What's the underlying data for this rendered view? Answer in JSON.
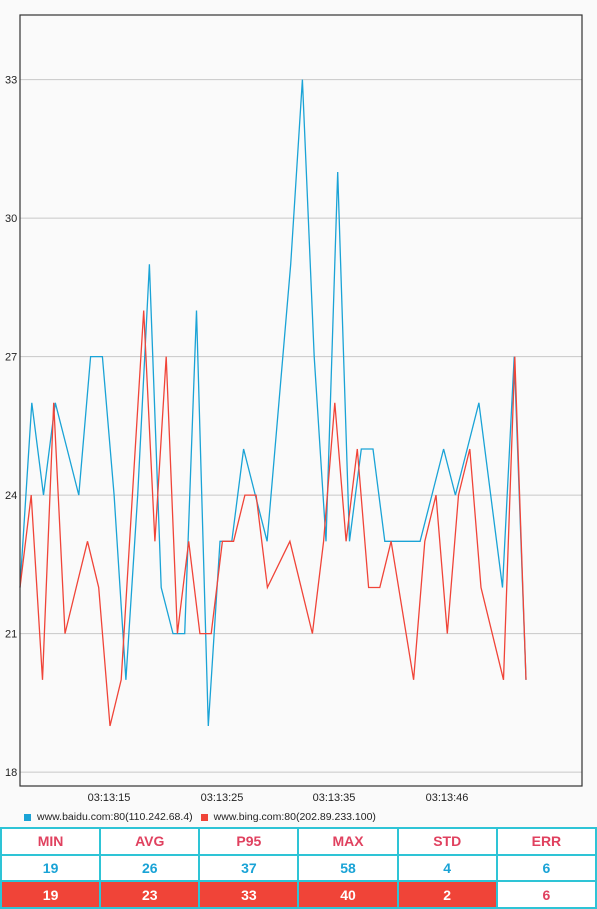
{
  "chart_data": {
    "type": "line",
    "xlabel": "",
    "ylabel": "",
    "ylim": [
      17.7,
      34.4
    ],
    "yticks": [
      18,
      21,
      24,
      27,
      30,
      33
    ],
    "xtick_labels": [
      "03:13:15",
      "03:13:25",
      "03:13:35",
      "03:13:46"
    ],
    "grid": true,
    "legend_position": "bottom-left",
    "series": [
      {
        "name": "www.baidu.com:80(110.242.68.4)",
        "color": "#1aa3d6",
        "values": [
          22,
          26,
          24,
          26,
          25,
          24,
          27,
          27,
          24,
          20,
          24,
          29,
          22,
          21,
          21,
          28,
          19,
          23,
          23,
          25,
          24,
          23,
          26,
          29,
          33,
          27,
          23,
          31,
          23,
          25,
          25,
          23,
          23,
          23,
          23,
          24,
          25,
          24,
          25,
          26,
          24,
          22,
          27,
          20
        ]
      },
      {
        "name": "www.bing.com:80(202.89.233.100)",
        "color": "#f04438",
        "values": [
          22,
          24,
          20,
          26,
          21,
          22,
          23,
          22,
          19,
          20,
          24,
          28,
          23,
          27,
          21,
          23,
          21,
          21,
          23,
          23,
          24,
          24,
          22,
          null,
          23,
          null,
          21,
          23,
          26,
          23,
          25,
          22,
          22,
          23,
          null,
          20,
          23,
          24,
          21,
          24,
          25,
          22,
          null,
          20,
          27,
          20
        ]
      }
    ]
  },
  "stats": {
    "headers": [
      "MIN",
      "AVG",
      "P95",
      "MAX",
      "STD",
      "ERR"
    ],
    "rows": [
      [
        "19",
        "26",
        "37",
        "58",
        "4",
        "6"
      ],
      [
        "19",
        "23",
        "33",
        "40",
        "2",
        "6"
      ]
    ]
  }
}
